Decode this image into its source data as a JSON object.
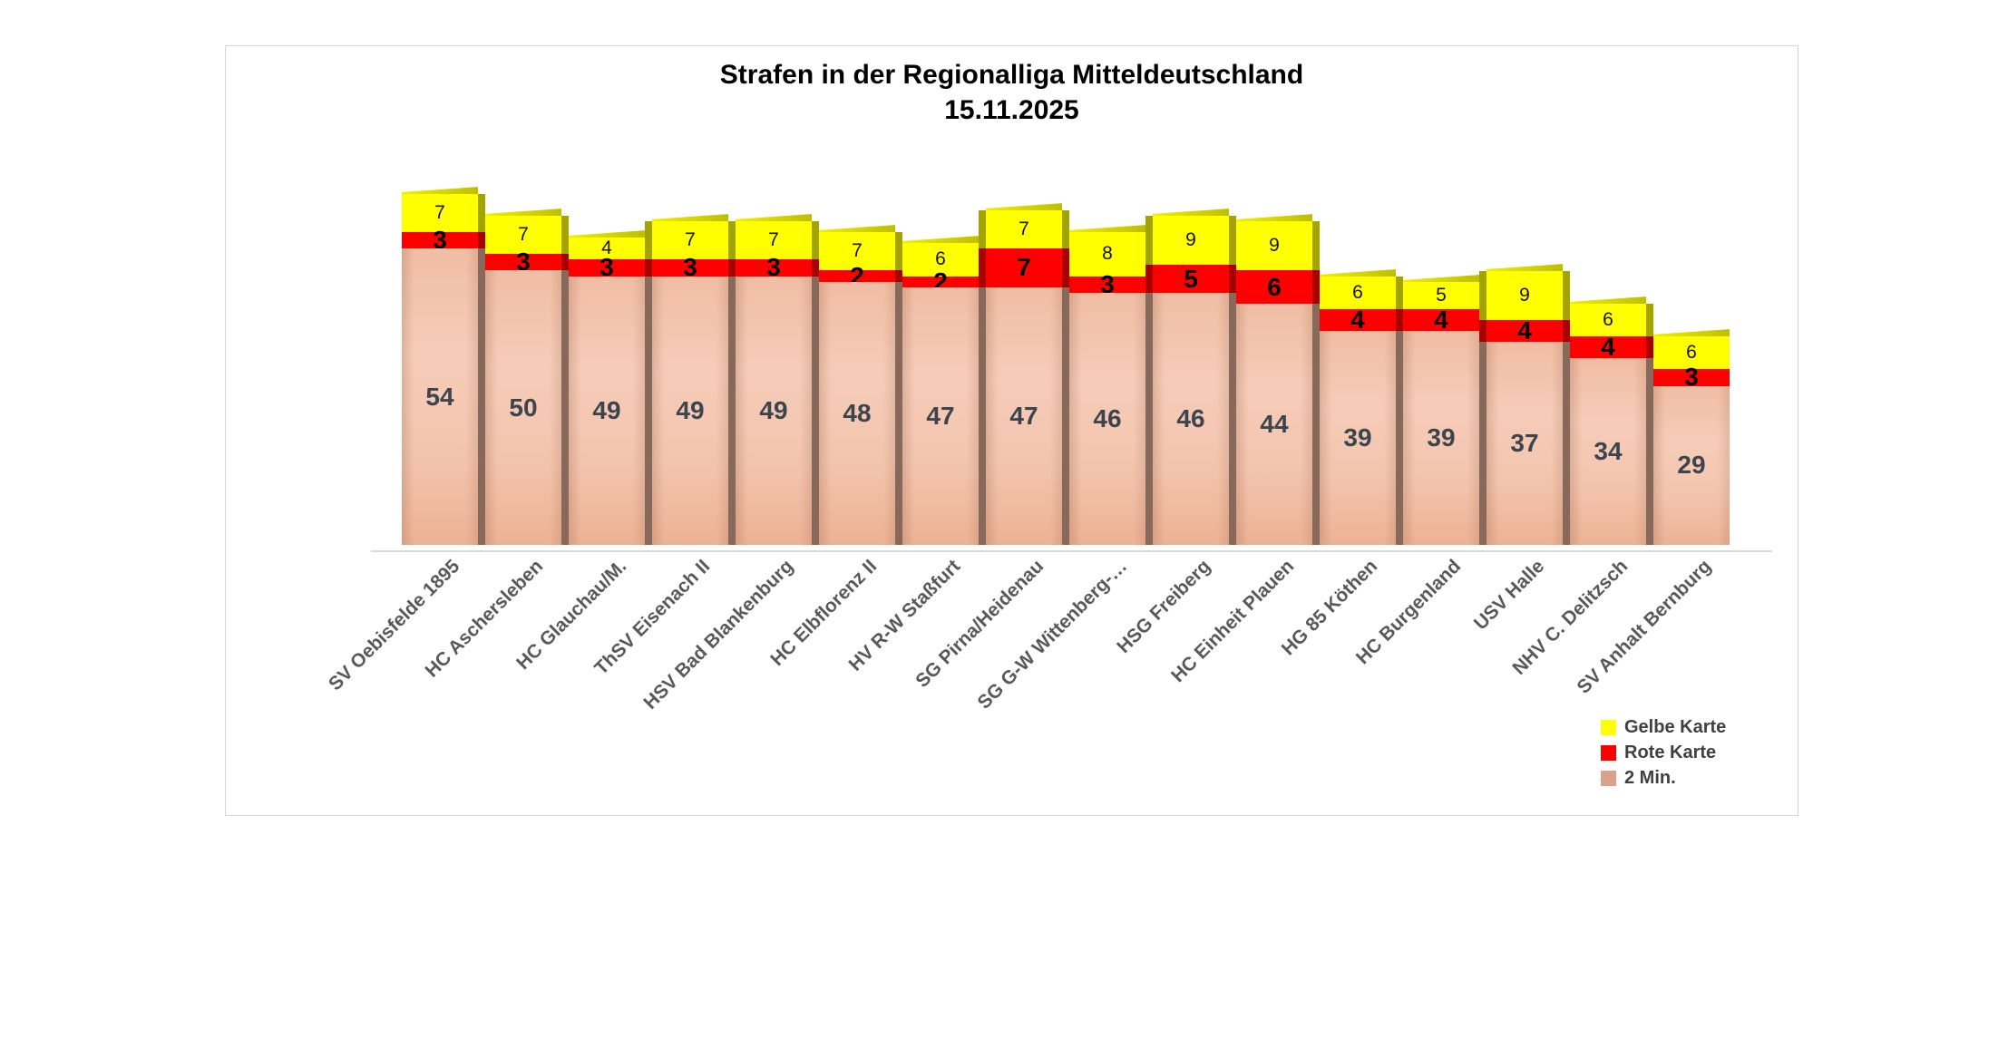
{
  "title": {
    "line1": "Strafen in der Regionalliga Mitteldeutschland",
    "line2": "15.11.2025"
  },
  "legend": [
    {
      "label": "Gelbe Karte",
      "color": "#ffff00"
    },
    {
      "label": "Rote Karte",
      "color": "#ff0000"
    },
    {
      "label": "2 Min.",
      "color": "#d9a289"
    }
  ],
  "chart_data": {
    "type": "bar",
    "stacked": true,
    "title": "Strafen in der Regionalliga Mitteldeutschland",
    "subtitle": "15.11.2025",
    "categories": [
      "SV Oebisfelde 1895",
      "HC Aschersleben",
      "HC Glauchau/M.",
      "ThSV Eisenach II",
      "HSV Bad Blankenburg",
      "HC Elbflorenz II",
      "HV R-W Staßfurt",
      "SG Pirna/Heidenau",
      "SG G-W Wittenberg-…",
      "HSG Freiberg",
      "HC Einheit Plauen",
      "HG 85 Köthen",
      "HC Burgenland",
      "USV Halle",
      "NHV C. Delitzsch",
      "SV Anhalt Bernburg"
    ],
    "series": [
      {
        "name": "2 Min.",
        "color": "#f2c3ab",
        "values": [
          54,
          50,
          49,
          49,
          49,
          48,
          47,
          47,
          46,
          46,
          44,
          39,
          39,
          37,
          34,
          29
        ]
      },
      {
        "name": "Rote Karte",
        "color": "#ff0000",
        "values": [
          3,
          3,
          3,
          3,
          3,
          2,
          2,
          7,
          3,
          5,
          6,
          4,
          4,
          4,
          4,
          3
        ]
      },
      {
        "name": "Gelbe Karte",
        "color": "#ffff00",
        "values": [
          7,
          7,
          4,
          7,
          7,
          7,
          6,
          7,
          8,
          9,
          9,
          6,
          5,
          9,
          6,
          6
        ]
      }
    ],
    "ylim": [
      0,
      64
    ],
    "gridlines": false,
    "bar_labels": true,
    "legend_position": "bottom-right",
    "xlabel": "",
    "ylabel": ""
  }
}
